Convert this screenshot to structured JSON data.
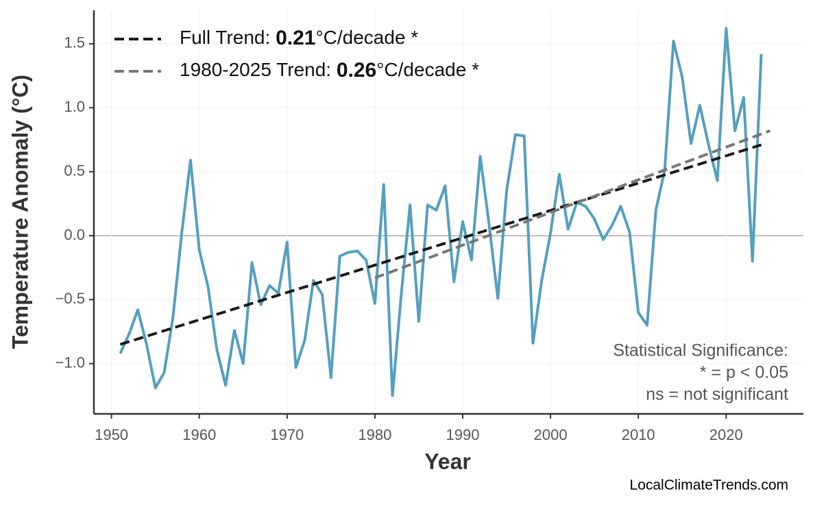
{
  "chart_data": {
    "type": "line",
    "xlabel": "Year",
    "ylabel": "Temperature Anomaly (°C)",
    "xlim": [
      1948,
      2028.8
    ],
    "ylim": [
      -1.393,
      1.762
    ],
    "xticks": [
      1950,
      1960,
      1970,
      1980,
      1990,
      2000,
      2010,
      2020
    ],
    "yticks": [
      {
        "value": -1.0,
        "label": "−1.0"
      },
      {
        "value": -0.5,
        "label": "−0.5"
      },
      {
        "value": 0,
        "label": "0.0"
      },
      {
        "value": 0.5,
        "label": "0.5"
      },
      {
        "value": 1.0,
        "label": "1.0"
      },
      {
        "value": 1.5,
        "label": "1.5"
      }
    ],
    "grid": true,
    "legend": "upper left",
    "series": [
      {
        "color": "#559fbf",
        "x": [
          1951,
          1952,
          1953,
          1954,
          1955,
          1956,
          1957,
          1958,
          1959,
          1960,
          1961,
          1962,
          1963,
          1964,
          1965,
          1966,
          1967,
          1968,
          1969,
          1970,
          1971,
          1972,
          1973,
          1974,
          1975,
          1976,
          1977,
          1978,
          1979,
          1980,
          1981,
          1982,
          1983,
          1984,
          1985,
          1986,
          1987,
          1988,
          1989,
          1990,
          1991,
          1992,
          1993,
          1994,
          1995,
          1996,
          1997,
          1998,
          1999,
          2000,
          2001,
          2002,
          2003,
          2004,
          2005,
          2006,
          2007,
          2008,
          2009,
          2010,
          2011,
          2012,
          2013,
          2014,
          2015,
          2016,
          2017,
          2018,
          2019,
          2020,
          2021,
          2022,
          2023,
          2024
        ],
        "values": [
          -0.92,
          -0.77,
          -0.58,
          -0.85,
          -1.19,
          -1.07,
          -0.64,
          0.02,
          0.59,
          -0.11,
          -0.4,
          -0.89,
          -1.17,
          -0.74,
          -1.0,
          -0.21,
          -0.54,
          -0.39,
          -0.45,
          -0.05,
          -1.03,
          -0.82,
          -0.35,
          -0.46,
          -1.11,
          -0.16,
          -0.13,
          -0.12,
          -0.19,
          -0.53,
          0.4,
          -1.25,
          -0.46,
          0.24,
          -0.67,
          0.24,
          0.2,
          0.39,
          -0.36,
          0.11,
          -0.19,
          0.62,
          0.09,
          -0.49,
          0.35,
          0.79,
          0.78,
          -0.84,
          -0.35,
          0.02,
          0.48,
          0.05,
          0.26,
          0.23,
          0.13,
          -0.03,
          0.08,
          0.23,
          0.03,
          -0.6,
          -0.7,
          0.2,
          0.51,
          1.52,
          1.24,
          0.72,
          1.02,
          0.71,
          0.43,
          1.62,
          0.82,
          1.08,
          -0.2,
          1.42
        ]
      },
      {
        "name": "Full Trend: 0.21°C/decade *",
        "color": "#1a1a1a",
        "dash": true,
        "x": [
          1951,
          2024
        ],
        "values": [
          -0.85,
          0.71
        ]
      },
      {
        "name": "1980-2025 Trend: 0.26°C/decade *",
        "color": "#777777",
        "dash": true,
        "x": [
          1980,
          2025
        ],
        "values": [
          -0.33,
          0.82
        ]
      }
    ],
    "annotation": [
      "Statistical Significance:",
      "* = p < 0.05",
      "ns = not significant"
    ],
    "source": "LocalClimateTrends.com"
  }
}
